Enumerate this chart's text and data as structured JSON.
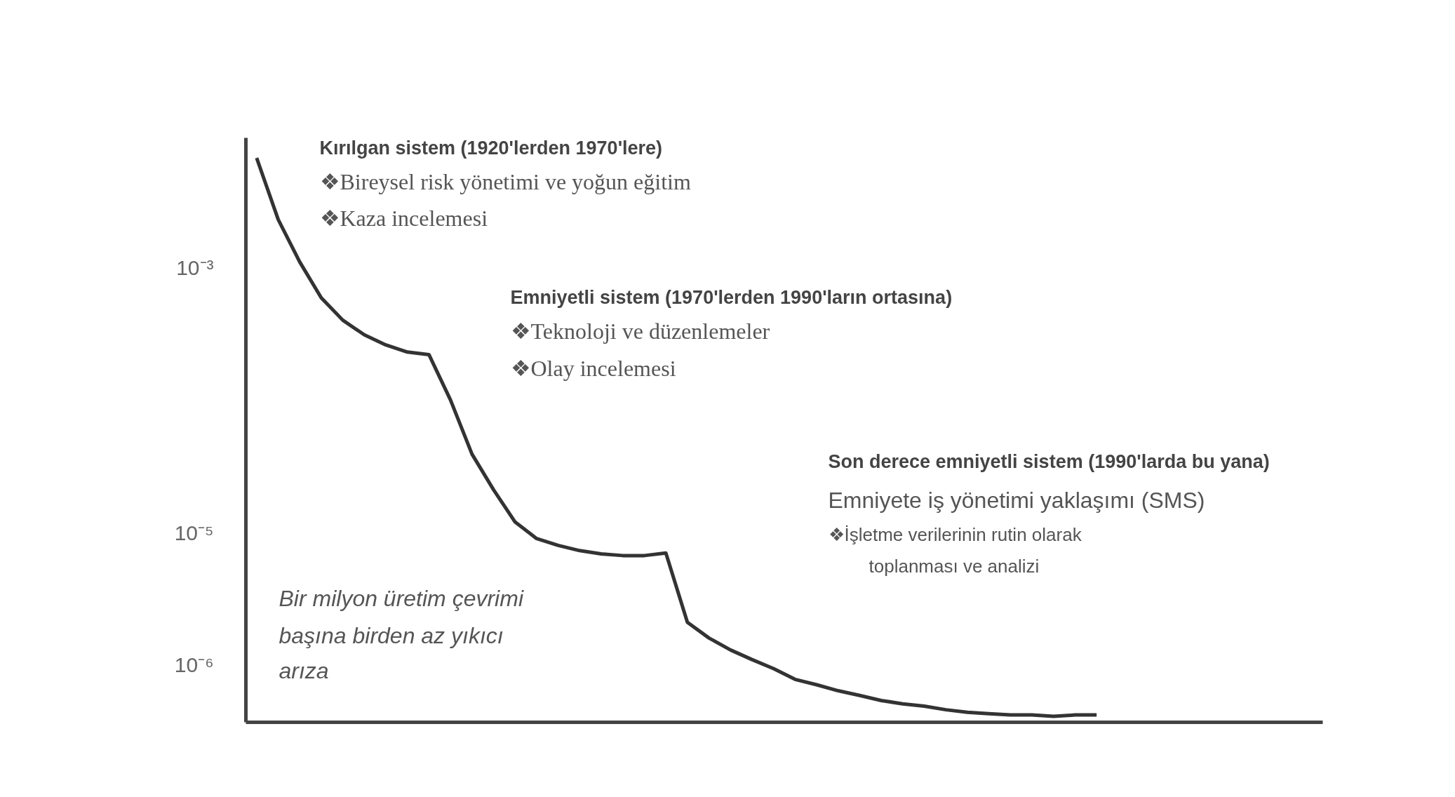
{
  "chart_data": {
    "type": "line",
    "log": true,
    "tick_labels": "y",
    "grid": false,
    "categories": [
      null,
      null,
      null,
      null,
      null,
      null,
      null,
      null,
      null,
      null,
      null,
      null,
      null,
      null,
      null,
      null,
      null,
      null,
      null,
      null,
      null,
      null,
      null,
      null,
      null,
      null,
      null,
      null,
      null,
      null,
      null,
      null,
      null,
      null,
      null,
      null,
      null,
      null,
      null,
      null,
      null,
      null,
      null,
      null,
      null,
      null,
      null,
      null,
      null,
      null
    ],
    "series": [
      {
        "color": "#333333",
        "values": [
          0.0067,
          0.0023,
          0.0011,
          0.00059,
          0.0004,
          0.00031,
          0.00026,
          0.00023,
          0.00022,
          0.0001,
          3.9e-05,
          2.1e-05,
          1.2e-05,
          9e-06,
          8e-06,
          7.3e-06,
          6.9e-06,
          6.7e-06,
          6.7e-06,
          7e-06,
          2.1e-06,
          1.6e-06,
          1.3e-06,
          1.1e-06,
          9.4e-07,
          7.8e-07,
          7.1e-07,
          6.4e-07,
          5.9e-07,
          5.4e-07,
          5.1e-07,
          4.9e-07,
          4.6e-07,
          4.4e-07,
          4.3e-07,
          4.2e-07,
          4.2e-07,
          4.1e-07,
          4.2e-07,
          4.2e-07,
          null,
          null,
          null,
          null,
          null,
          null,
          null,
          null,
          null,
          null
        ]
      }
    ],
    "ylim": [
      3.7e-07,
      0.0095
    ],
    "yticks": [
      {
        "value": 0.001,
        "label": "10⁻³"
      },
      {
        "value": 1e-05,
        "label": "10⁻⁵"
      },
      {
        "value": 1e-06,
        "label": "10⁻⁶"
      }
    ],
    "annotations": [
      "Kırılgan sistem (1920'lerden 1970'lere)",
      "❖Bireysel risk yönetimi  ve yoğun eğitim",
      "❖Kaza incelemesi",
      "Emniyetli sistem (1970'lerden 1990'ların ortasına)",
      "❖Teknoloji ve düzenlemeler",
      "❖Olay incelemesi",
      "Son derece emniyetli sistem (1990'larda bu yana)",
      "Emniyete iş yönetimi yaklaşımı (SMS)",
      "❖İşletme verilerinin rutin olarak",
      "toplanması ve analizi",
      "Bir milyon üretim çevrimi",
      "başına birden az yıkıcı",
      "arıza"
    ]
  }
}
